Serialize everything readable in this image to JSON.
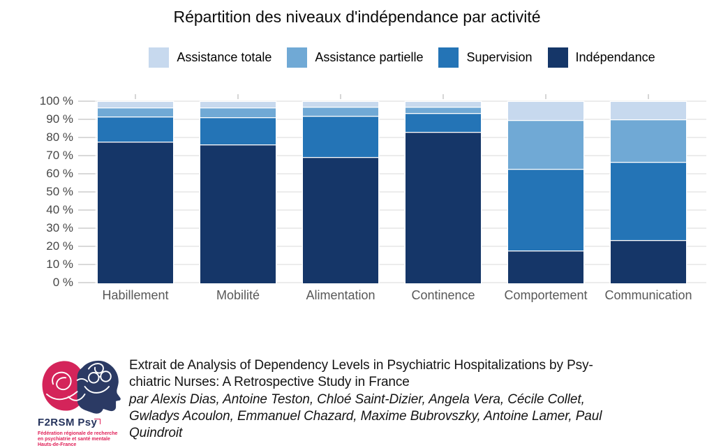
{
  "title": "Répartition des niveaux d'indépendance par activité",
  "colors": {
    "assistance_totale": "#c7d9ee",
    "assistance_partielle": "#70a9d5",
    "supervision": "#2474b6",
    "independance": "#153668",
    "gridline": "#ececec",
    "logo_red": "#d4245a",
    "logo_navy": "#2b3a64"
  },
  "chart_data": {
    "type": "bar",
    "subtype": "stacked_percent",
    "title": "Répartition des niveaux d'indépendance par activité",
    "categories": [
      "Habillement",
      "Mobilité",
      "Alimentation",
      "Continence",
      "Comportement",
      "Communication"
    ],
    "series": [
      {
        "name": "Assistance totale",
        "color": "#c7d9ee",
        "values": [
          3,
          3,
          2.5,
          2.5,
          10,
          9.5
        ]
      },
      {
        "name": "Assistance partielle",
        "color": "#70a9d5",
        "values": [
          5,
          5.5,
          5,
          3.5,
          27,
          23.5
        ]
      },
      {
        "name": "Supervision",
        "color": "#2474b6",
        "values": [
          14,
          15,
          23,
          10.5,
          45,
          43
        ]
      },
      {
        "name": "Indépendance",
        "color": "#153668",
        "values": [
          78,
          76.5,
          69.5,
          83.5,
          18,
          24
        ]
      }
    ],
    "stack_order_bottom_to_top": [
      "Indépendance",
      "Supervision",
      "Assistance partielle",
      "Assistance totale"
    ],
    "xlabel": "",
    "ylabel": "",
    "ylim": [
      0,
      100
    ],
    "ytick_labels": [
      "0 %",
      "10 %",
      "20 %",
      "30 %",
      "40 %",
      "50 %",
      "60 %",
      "70 %",
      "80 %",
      "90 %",
      "100 %"
    ],
    "grid": "horizontal",
    "legend_position": "top"
  },
  "footer": {
    "logo": {
      "title": "F2RSM Psy",
      "subtitle_lines": [
        "Fédération régionale de recherche",
        "en psychiatrie et santé mentale",
        "Hauts-de-France"
      ]
    },
    "citation_lines": [
      "Extrait de Analysis of Dependency Levels in Psychiatric Hospitalizations by Psy-",
      "chiatric Nurses: A Retrospective Study in France",
      "par Alexis Dias, Antoine Teston, Chloé Saint-Dizier, Angela Vera, Cécile Collet,",
      "Gwladys Acoulon, Emmanuel Chazard, Maxime Bubrovszky, Antoine Lamer, Paul",
      "Quindroit"
    ]
  }
}
